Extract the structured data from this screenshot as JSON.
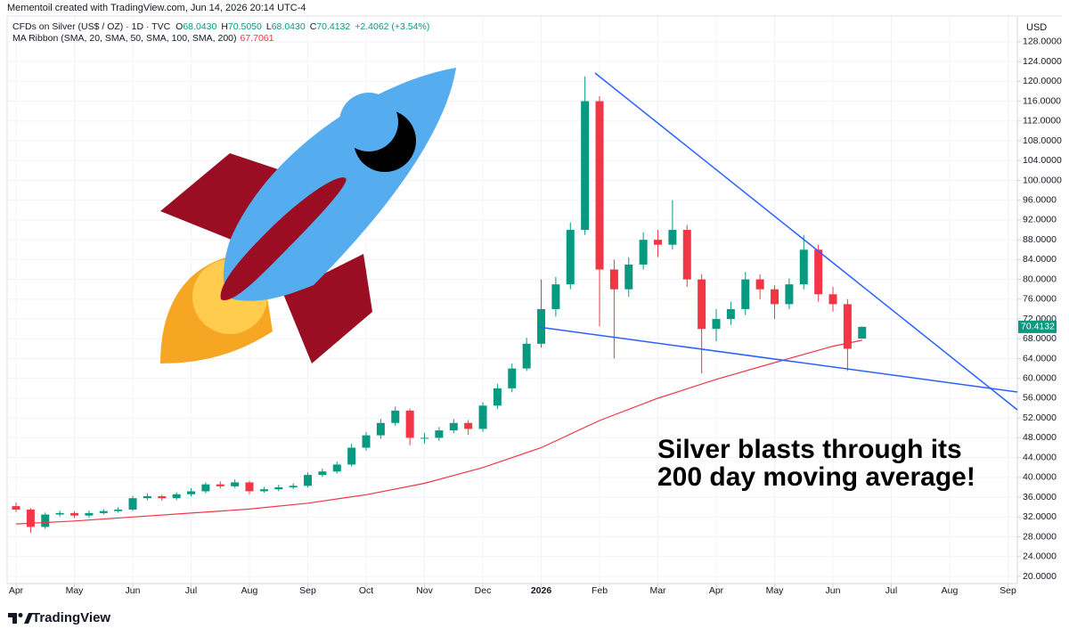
{
  "attribution": "Mementoil created with TradingView.com, Jun 14, 2026 20:14 UTC-4",
  "footer_logo": "TradingView",
  "chart_data": {
    "type": "candlestick",
    "title": "CFDs on Silver (US$ / OZ) · 1D · TVC",
    "ohlc_readout": [
      {
        "label": "O",
        "value": "68.0430"
      },
      {
        "label": "H",
        "value": "70.5050"
      },
      {
        "label": "L",
        "value": "68.0430"
      },
      {
        "label": "C",
        "value": "70.4132"
      }
    ],
    "change": "+2.4062 (+3.54%)",
    "currency": "USD",
    "last_price_label": "70.4132",
    "annotation": [
      "Silver blasts through its",
      "200 day moving average!"
    ],
    "up_color": "#089981",
    "down_color": "#f23645",
    "grid": true,
    "x": [
      0,
      0.25,
      0.5,
      0.75,
      1,
      1.25,
      1.5,
      1.75,
      2,
      2.25,
      2.5,
      2.75,
      3,
      3.25,
      3.5,
      3.75,
      4,
      4.25,
      4.5,
      4.75,
      5,
      5.25,
      5.5,
      5.75,
      6,
      6.25,
      6.5,
      6.75,
      7,
      7.25,
      7.5,
      7.75,
      8,
      8.25,
      8.5,
      8.75,
      9,
      9.25,
      9.5,
      9.75,
      10,
      10.25,
      10.5,
      10.75,
      11,
      11.25,
      11.5,
      11.75,
      12,
      12.25,
      12.5,
      12.75,
      13,
      13.25,
      13.5,
      13.75,
      14,
      14.25,
      14.5
    ],
    "open": [
      34.2,
      33.5,
      30.0,
      32.5,
      32.8,
      32.3,
      32.8,
      33.2,
      33.5,
      35.8,
      36.2,
      35.8,
      36.6,
      37.2,
      38.6,
      38.2,
      39.0,
      37.2,
      37.6,
      38.0,
      38.3,
      40.5,
      41.2,
      42.6,
      46.0,
      48.5,
      51.0,
      53.5,
      48.0,
      48.0,
      49.5,
      51.0,
      49.8,
      54.5,
      58.0,
      62.0,
      67.0,
      74.0,
      79.0,
      90.0,
      116.0,
      82.0,
      78.0,
      83.0,
      88.0,
      87.0,
      90.0,
      80.0,
      70.0,
      72.0,
      74.0,
      80.0,
      78.0,
      75.0,
      79.0,
      86.0,
      77.0,
      75.0,
      68.043
    ],
    "high": [
      34.9,
      33.8,
      32.9,
      33.3,
      33.2,
      33.3,
      33.6,
      34.0,
      36.3,
      36.8,
      36.5,
      37.0,
      37.8,
      39.0,
      39.2,
      39.6,
      39.3,
      38.1,
      38.5,
      38.8,
      41.0,
      41.8,
      43.2,
      46.8,
      49.2,
      51.8,
      54.3,
      53.9,
      49.0,
      50.2,
      51.8,
      51.6,
      55.2,
      58.9,
      63.0,
      68.2,
      80.0,
      80.5,
      91.5,
      121.0,
      117.0,
      84.0,
      84.5,
      89.5,
      90.0,
      96.0,
      91.0,
      81.0,
      74.0,
      75.5,
      81.5,
      81.0,
      78.8,
      80.2,
      89.0,
      87.0,
      78.5,
      76.0,
      70.505
    ],
    "low": [
      33.0,
      28.8,
      29.6,
      32.1,
      31.8,
      31.9,
      32.5,
      32.9,
      33.2,
      35.4,
      35.3,
      35.4,
      36.2,
      36.8,
      37.8,
      37.9,
      36.6,
      36.9,
      37.2,
      37.6,
      38.0,
      40.1,
      40.8,
      42.2,
      45.4,
      47.8,
      50.4,
      46.5,
      46.8,
      47.4,
      48.9,
      48.6,
      49.2,
      53.8,
      57.2,
      61.5,
      66.2,
      72.5,
      78.0,
      89.0,
      70.5,
      64.0,
      76.5,
      82.0,
      84.5,
      86.0,
      78.5,
      61.0,
      67.5,
      70.8,
      72.8,
      76.0,
      72.0,
      74.0,
      78.0,
      75.5,
      73.5,
      61.5,
      68.043
    ],
    "close": [
      33.5,
      30.0,
      32.5,
      32.8,
      32.3,
      32.8,
      33.2,
      33.5,
      35.8,
      36.2,
      35.8,
      36.6,
      37.2,
      38.6,
      38.2,
      39.0,
      37.2,
      37.6,
      38.0,
      38.3,
      40.5,
      41.2,
      42.6,
      46.0,
      48.5,
      51.0,
      53.5,
      48.0,
      48.0,
      49.5,
      51.0,
      49.8,
      54.5,
      58.0,
      62.0,
      67.0,
      74.0,
      79.0,
      90.0,
      116.0,
      82.0,
      78.0,
      83.0,
      88.0,
      87.0,
      90.0,
      80.0,
      70.0,
      72.0,
      74.0,
      80.0,
      78.0,
      75.0,
      79.0,
      86.0,
      77.0,
      75.0,
      66.0,
      70.4132
    ],
    "series": [
      {
        "name": "MA Ribbon (SMA, 20, SMA, 50, SMA, 100, SMA, 200)",
        "color": "#f23645",
        "x": [
          0,
          1,
          2,
          3,
          4,
          5,
          6,
          7,
          8,
          9,
          10,
          11,
          12,
          13,
          14,
          14.5
        ],
        "values": [
          30.6,
          31.2,
          32.0,
          32.8,
          33.6,
          34.8,
          36.5,
          38.8,
          42.0,
          46.0,
          51.5,
          56.0,
          59.8,
          63.2,
          66.5,
          67.7061
        ]
      }
    ],
    "xlim": [
      -0.153,
      17.16
    ],
    "xticks": [
      {
        "value": 0,
        "label": "Apr"
      },
      {
        "value": 1,
        "label": "May"
      },
      {
        "value": 2,
        "label": "Jun"
      },
      {
        "value": 3,
        "label": "Jul"
      },
      {
        "value": 4,
        "label": "Aug"
      },
      {
        "value": 5,
        "label": "Sep"
      },
      {
        "value": 6,
        "label": "Oct"
      },
      {
        "value": 7,
        "label": "Nov"
      },
      {
        "value": 8,
        "label": "Dec"
      },
      {
        "value": 9,
        "label": "2026"
      },
      {
        "value": 10,
        "label": "Feb"
      },
      {
        "value": 11,
        "label": "Mar"
      },
      {
        "value": 12,
        "label": "Apr"
      },
      {
        "value": 13,
        "label": "May"
      },
      {
        "value": 14,
        "label": "Jun"
      },
      {
        "value": 15,
        "label": "Jul"
      },
      {
        "value": 16,
        "label": "Aug"
      },
      {
        "value": 17,
        "label": "Sep"
      }
    ],
    "ylim": [
      18.56,
      133.2
    ],
    "yticks": [
      {
        "value": 20,
        "label": "20.0000"
      },
      {
        "value": 24,
        "label": "24.0000"
      },
      {
        "value": 28,
        "label": "28.0000"
      },
      {
        "value": 32,
        "label": "32.0000"
      },
      {
        "value": 36,
        "label": "36.0000"
      },
      {
        "value": 40,
        "label": "40.0000"
      },
      {
        "value": 44,
        "label": "44.0000"
      },
      {
        "value": 48,
        "label": "48.0000"
      },
      {
        "value": 52,
        "label": "52.0000"
      },
      {
        "value": 56,
        "label": "56.0000"
      },
      {
        "value": 60,
        "label": "60.0000"
      },
      {
        "value": 64,
        "label": "64.0000"
      },
      {
        "value": 68,
        "label": "68.0000"
      },
      {
        "value": 72,
        "label": "72.0000"
      },
      {
        "value": 76,
        "label": "76.0000"
      },
      {
        "value": 80,
        "label": "80.0000"
      },
      {
        "value": 84,
        "label": "84.0000"
      },
      {
        "value": 88,
        "label": "88.0000"
      },
      {
        "value": 92,
        "label": "92.0000"
      },
      {
        "value": 96,
        "label": "96.0000"
      },
      {
        "value": 100,
        "label": "100.0000"
      },
      {
        "value": 104,
        "label": "104.0000"
      },
      {
        "value": 108,
        "label": "108.0000"
      },
      {
        "value": 112,
        "label": "112.0000"
      },
      {
        "value": 116,
        "label": "116.0000"
      },
      {
        "value": 120,
        "label": "120.0000"
      },
      {
        "value": 124,
        "label": "124.0000"
      },
      {
        "value": 128,
        "label": "128.0000"
      }
    ]
  }
}
